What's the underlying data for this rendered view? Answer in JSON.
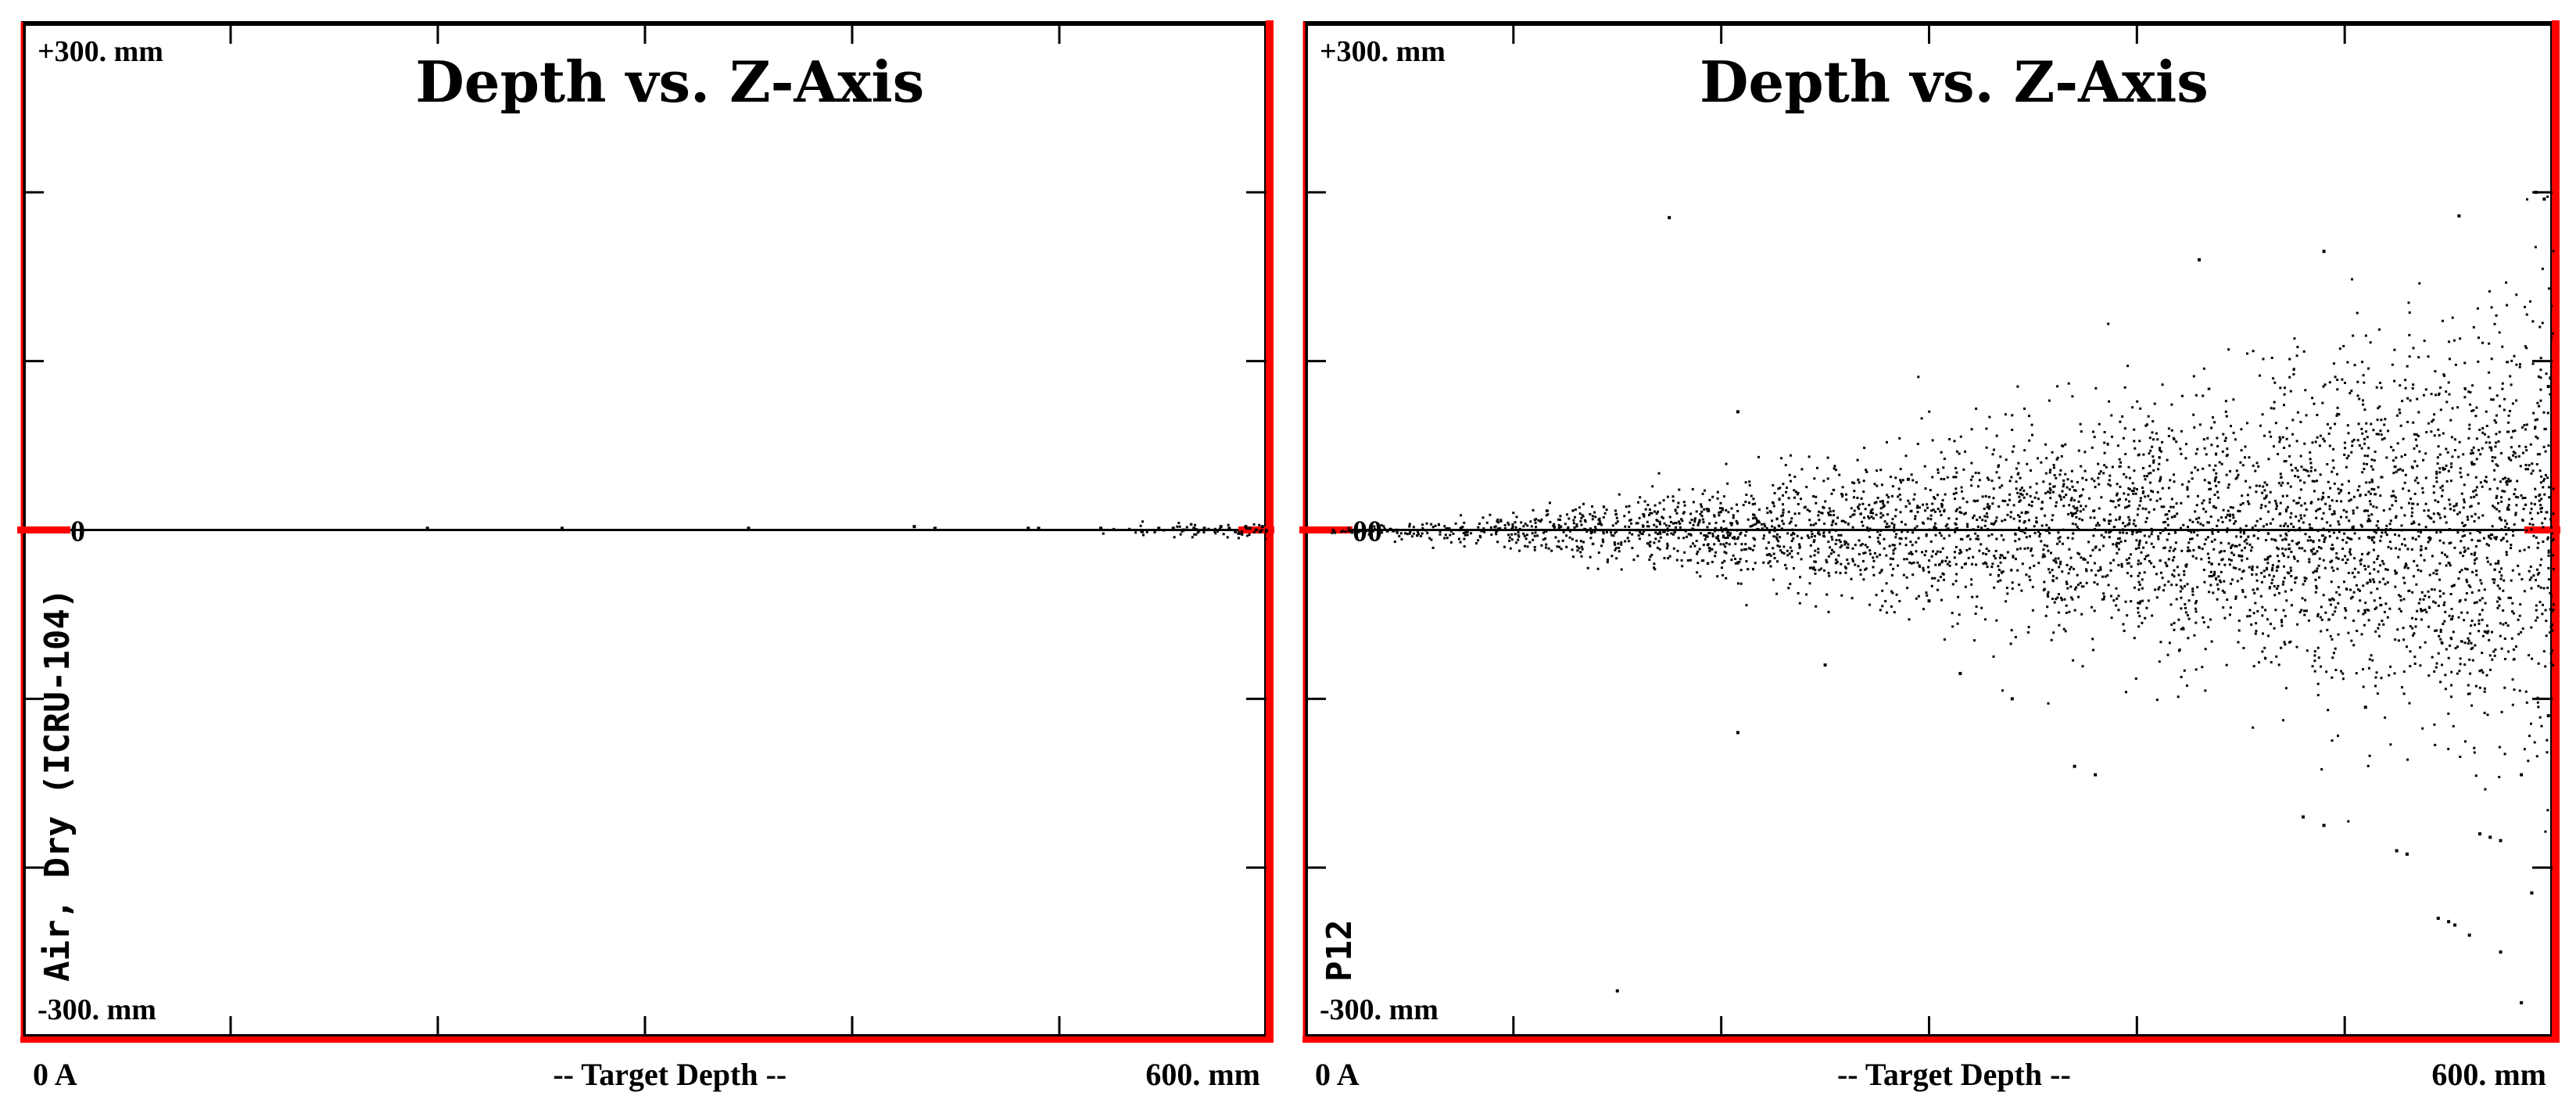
{
  "chart_data": [
    {
      "type": "scatter",
      "title": "Depth vs. Z-Axis",
      "material": "Air, Dry (ICRU-104)",
      "y_top_label": "+300. mm",
      "y_bottom_label": "-300. mm",
      "y_zero_label": "0",
      "x_left_label": "0 A",
      "x_center_label": "-- Target Depth --",
      "x_right_label": "600. mm",
      "xlim": [
        0,
        600
      ],
      "ylim": [
        -300,
        300
      ],
      "x_unit": "mm",
      "y_unit": "mm",
      "spread_at_max_depth_mm": 2,
      "points": [
        [
          195,
          1
        ],
        [
          260,
          1
        ],
        [
          350,
          1
        ],
        [
          430,
          2
        ],
        [
          440,
          1
        ],
        [
          485,
          1
        ],
        [
          490,
          1
        ],
        [
          520,
          1
        ],
        [
          540,
          -1
        ],
        [
          548,
          1
        ],
        [
          555,
          1
        ],
        [
          560,
          0
        ],
        [
          565,
          1
        ],
        [
          570,
          1
        ],
        [
          578,
          2
        ],
        [
          582,
          1
        ],
        [
          585,
          -1
        ],
        [
          590,
          2
        ],
        [
          592,
          1
        ],
        [
          595,
          0
        ],
        [
          597,
          -1
        ],
        [
          598,
          2
        ]
      ]
    },
    {
      "type": "scatter",
      "title": "Depth vs. Z-Axis",
      "material": "P12",
      "y_top_label": "+300. mm",
      "y_bottom_label": "-300. mm",
      "y_zero_label": "00",
      "x_left_label": "0 A",
      "x_center_label": "-- Target Depth --",
      "x_right_label": "600. mm",
      "xlim": [
        0,
        600
      ],
      "ylim": [
        -300,
        300
      ],
      "x_unit": "mm",
      "y_unit": "mm",
      "spread_at_max_depth_mm": 65,
      "points": [
        [
          175,
          185
        ],
        [
          208,
          70
        ],
        [
          290,
          30
        ],
        [
          430,
          160
        ],
        [
          490,
          165
        ],
        [
          555,
          186
        ],
        [
          592,
          200
        ],
        [
          596,
          196
        ],
        [
          598,
          85
        ],
        [
          599,
          90
        ],
        [
          208,
          -120
        ],
        [
          250,
          -80
        ],
        [
          300,
          -42
        ],
        [
          315,
          -85
        ],
        [
          340,
          -100
        ],
        [
          370,
          -140
        ],
        [
          380,
          -145
        ],
        [
          480,
          -170
        ],
        [
          490,
          -175
        ],
        [
          510,
          -105
        ],
        [
          525,
          -190
        ],
        [
          530,
          -192
        ],
        [
          545,
          -230
        ],
        [
          550,
          -232
        ],
        [
          553,
          -234
        ],
        [
          565,
          -180
        ],
        [
          570,
          -182
        ],
        [
          575,
          -184
        ],
        [
          585,
          -280
        ],
        [
          590,
          -215
        ],
        [
          560,
          -240
        ],
        [
          150,
          -273
        ],
        [
          585,
          -145
        ],
        [
          598,
          -110
        ],
        [
          575,
          -250
        ]
      ]
    }
  ]
}
